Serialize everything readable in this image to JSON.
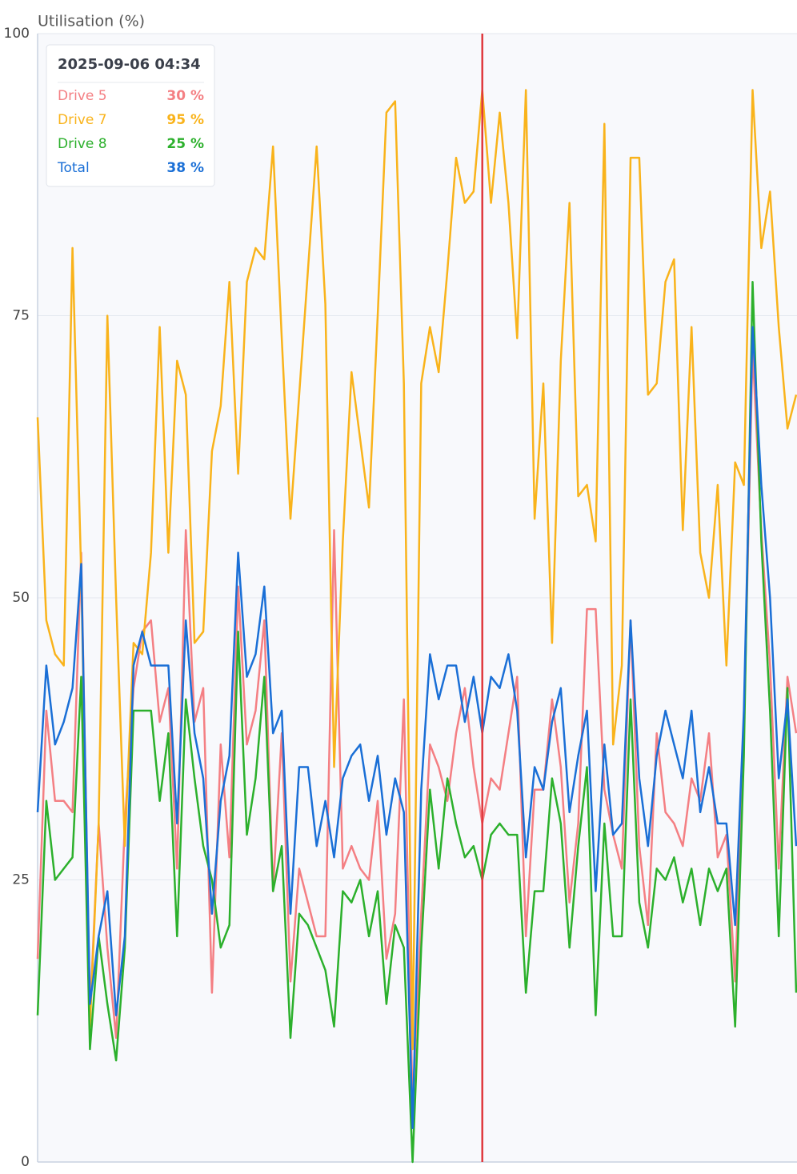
{
  "chart_data": {
    "type": "line",
    "y_title": "Utilisation (%)",
    "ylim": [
      0,
      100
    ],
    "yticks": [
      0,
      25,
      50,
      75,
      100
    ],
    "grid": true,
    "series": [
      {
        "name": "Drive 5",
        "color": "#f47f83",
        "values": [
          18,
          40,
          32,
          32,
          31,
          54,
          13,
          30,
          19,
          11,
          30,
          42,
          47,
          48,
          39,
          42,
          26,
          56,
          39,
          42,
          15,
          37,
          27,
          51,
          37,
          40,
          48,
          24,
          38,
          16,
          26,
          23,
          20,
          20,
          56,
          26,
          28,
          26,
          25,
          32,
          18,
          22,
          41,
          5,
          22,
          37,
          35,
          32,
          38,
          42,
          35,
          30,
          34,
          33,
          38,
          43,
          20,
          33,
          33,
          41,
          35,
          23,
          30,
          49,
          49,
          33,
          29,
          26,
          48,
          28,
          21,
          38,
          31,
          30,
          28,
          34,
          32,
          38,
          27,
          29,
          16,
          38,
          72,
          56,
          44,
          26,
          43,
          38
        ]
      },
      {
        "name": "Drive 7",
        "color": "#f9b31b",
        "values": [
          66,
          48,
          45,
          44,
          81,
          52,
          12,
          30,
          75,
          50,
          28,
          46,
          45,
          54,
          74,
          54,
          71,
          68,
          46,
          47,
          63,
          67,
          78,
          61,
          78,
          81,
          80,
          90,
          73,
          57,
          68,
          79,
          90,
          76,
          35,
          55,
          70,
          64,
          58,
          75,
          93,
          94,
          69,
          10,
          69,
          74,
          70,
          79,
          89,
          85,
          86,
          95,
          85,
          93,
          85,
          73,
          95,
          57,
          69,
          46,
          71,
          85,
          59,
          60,
          55,
          92,
          37,
          44,
          89,
          89,
          68,
          69,
          78,
          80,
          56,
          74,
          54,
          50,
          60,
          44,
          62,
          60,
          95,
          81,
          86,
          74,
          65,
          68
        ]
      },
      {
        "name": "Drive 8",
        "color": "#2cb02c",
        "values": [
          13,
          32,
          25,
          26,
          27,
          43,
          10,
          20,
          14,
          9,
          19,
          40,
          40,
          40,
          32,
          38,
          20,
          41,
          34,
          28,
          25,
          19,
          21,
          47,
          29,
          34,
          43,
          24,
          28,
          11,
          22,
          21,
          19,
          17,
          12,
          24,
          23,
          25,
          20,
          24,
          14,
          21,
          19,
          0,
          19,
          33,
          26,
          34,
          30,
          27,
          28,
          25,
          29,
          30,
          29,
          29,
          15,
          24,
          24,
          34,
          30,
          19,
          28,
          35,
          13,
          30,
          20,
          20,
          41,
          23,
          19,
          26,
          25,
          27,
          23,
          26,
          21,
          26,
          24,
          26,
          12,
          36,
          78,
          55,
          40,
          20,
          42,
          15
        ]
      },
      {
        "name": "Total",
        "color": "#1a6fd6",
        "values": [
          31,
          44,
          37,
          39,
          42,
          53,
          14,
          20,
          24,
          13,
          20,
          44,
          47,
          44,
          44,
          44,
          30,
          48,
          38,
          34,
          22,
          32,
          36,
          54,
          43,
          45,
          51,
          38,
          40,
          22,
          35,
          35,
          28,
          32,
          27,
          34,
          36,
          37,
          32,
          36,
          29,
          34,
          31,
          3,
          33,
          45,
          41,
          44,
          44,
          39,
          43,
          38,
          43,
          42,
          45,
          40,
          27,
          35,
          33,
          39,
          42,
          31,
          36,
          40,
          24,
          37,
          29,
          30,
          48,
          34,
          28,
          36,
          40,
          37,
          34,
          40,
          31,
          35,
          30,
          30,
          21,
          40,
          74,
          60,
          50,
          34,
          41,
          28
        ]
      }
    ],
    "tooltip": {
      "title": "2025-09-06 04:34",
      "labels": [
        "30 %",
        "95 %",
        "25 %",
        "38 %"
      ]
    },
    "crosshair_color": "#e0393e"
  }
}
